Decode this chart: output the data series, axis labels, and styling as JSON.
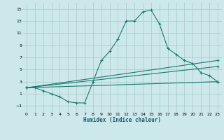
{
  "xlabel": "Humidex (Indice chaleur)",
  "bg_color": "#cce8ea",
  "grid_color": "#aacfd2",
  "line_color": "#1a7a6e",
  "xlim": [
    -0.5,
    23.5
  ],
  "ylim": [
    -2,
    16
  ],
  "xticks": [
    0,
    1,
    2,
    3,
    4,
    5,
    6,
    7,
    8,
    9,
    10,
    11,
    12,
    13,
    14,
    15,
    16,
    17,
    18,
    19,
    20,
    21,
    22,
    23
  ],
  "yticks": [
    -1,
    1,
    3,
    5,
    7,
    9,
    11,
    13,
    15
  ],
  "series1_x": [
    0,
    1,
    2,
    3,
    4,
    5,
    6,
    7,
    8,
    9,
    10,
    11,
    12,
    13,
    14,
    15,
    16,
    17,
    18,
    19,
    20,
    21,
    22,
    23
  ],
  "series1_y": [
    2,
    2,
    1.5,
    1,
    0.5,
    -0.3,
    -0.5,
    -0.5,
    3,
    6.5,
    8,
    10,
    13,
    13,
    14.5,
    14.8,
    12.5,
    8.5,
    7.5,
    6.5,
    6,
    4.5,
    4,
    3
  ],
  "series2_x": [
    0,
    23
  ],
  "series2_y": [
    2,
    6.5
  ],
  "series3_x": [
    0,
    23
  ],
  "series3_y": [
    2,
    5.5
  ],
  "series4_x": [
    0,
    23
  ],
  "series4_y": [
    2,
    3
  ],
  "fig_width": 3.2,
  "fig_height": 2.0,
  "dpi": 100
}
